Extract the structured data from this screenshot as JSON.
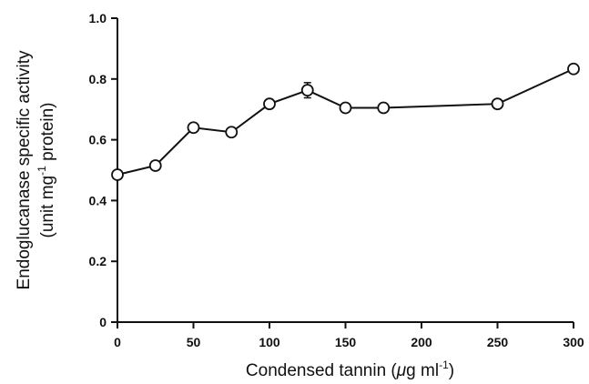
{
  "chart_data": {
    "type": "line",
    "xlabel": {
      "pre": "Condensed tannin (",
      "mu": "μ",
      "mid": "g ml",
      "sup": "-1",
      "post": ")"
    },
    "ylabel": {
      "line1": "Endoglucanase specific activity",
      "line2_pre": "(unit mg",
      "line2_sup": "-1",
      "line2_post": " protein)"
    },
    "xlim": [
      0,
      300
    ],
    "ylim": [
      0,
      1.0
    ],
    "x_ticks": [
      0,
      50,
      100,
      150,
      200,
      250,
      300
    ],
    "x_tick_labels": [
      "0",
      "50",
      "100",
      "150",
      "200",
      "250",
      "300"
    ],
    "y_ticks": [
      0,
      0.2,
      0.4,
      0.6,
      0.8,
      1.0
    ],
    "y_tick_labels": [
      "0",
      "0.2",
      "0.4",
      "0.6",
      "0.8",
      "1.0"
    ],
    "grid": false,
    "series": [
      {
        "x": [
          0,
          25,
          50,
          75,
          100,
          125,
          150,
          175,
          250,
          300
        ],
        "y": [
          0.485,
          0.515,
          0.64,
          0.625,
          0.718,
          0.763,
          0.705,
          0.705,
          0.718,
          0.833
        ],
        "error": [
          0,
          0,
          0,
          0,
          0,
          0.025,
          0,
          0,
          0,
          0
        ]
      }
    ]
  }
}
